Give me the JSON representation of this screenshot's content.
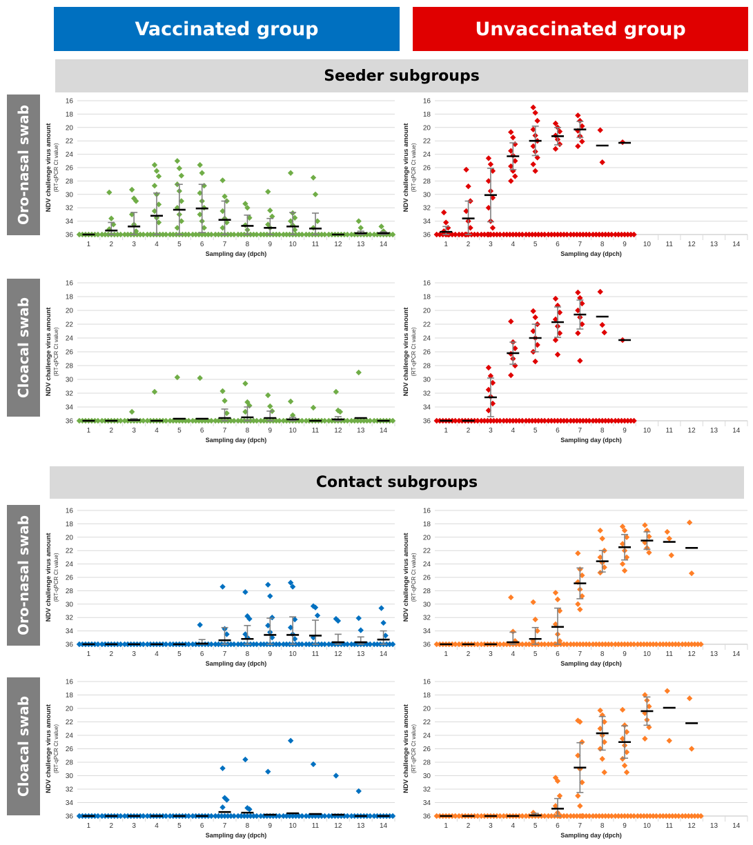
{
  "header": {
    "vaccinated": {
      "label": "Vaccinated group",
      "color": "#0070c0"
    },
    "unvaccinated": {
      "label": "Unvaccinated group",
      "color": "#e00000"
    }
  },
  "sections": {
    "seeder": "Seeder subgroups",
    "contact": "Contact subgroups"
  },
  "row_labels": {
    "oronasal": "Oro-nasal swab",
    "cloacal": "Cloacal swab"
  },
  "axis_text": {
    "ylabel": "NDV challenge virus amount",
    "ylabel_sub": "(RT-qPCR Ct value)",
    "xlabel": "Sampling day (dpch)"
  },
  "colors": {
    "vacc_seeder": "#70ad47",
    "unvacc_seeder": "#e00000",
    "vacc_contact": "#0070c0",
    "unvacc_contact": "#ff7f27",
    "mean": "#000000",
    "errorbar": "#7f7f7f"
  },
  "chart_data": [
    {
      "id": "vacc-seeder-oronasal",
      "type": "scatter",
      "ylabel": "NDV challenge virus amount (RT-qPCR Ct value)",
      "xlabel": "Sampling day (dpch)",
      "y_ticks": [
        16,
        18,
        20,
        22,
        24,
        26,
        28,
        30,
        32,
        34,
        36
      ],
      "ylim": [
        36,
        16
      ],
      "y_reversed": true,
      "x": [
        1,
        2,
        3,
        4,
        5,
        6,
        7,
        8,
        9,
        10,
        11,
        12,
        13,
        14
      ],
      "means": [
        36,
        35.4,
        34.8,
        33.2,
        32.3,
        32.1,
        33.8,
        34.7,
        35.0,
        34.8,
        35.1,
        36,
        35.8,
        35.8
      ],
      "sd": [
        0,
        1.2,
        2.1,
        3.4,
        3.8,
        3.6,
        2.8,
        1.6,
        1.4,
        2.1,
        2.3,
        0,
        0.3,
        0.2
      ],
      "points": [
        [],
        [
          29.7,
          33.6,
          34.5,
          35.2
        ],
        [
          29.3,
          30.6,
          31.0,
          33.0,
          34.5,
          35.5
        ],
        [
          25.6,
          26.5,
          27.3,
          28.7,
          30.0,
          31.5,
          32.5,
          33.5,
          34.2
        ],
        [
          25.0,
          26.1,
          27.2,
          28.5,
          29.5,
          31.0,
          32.0,
          33.0,
          34.0,
          35.0
        ],
        [
          25.6,
          26.8,
          28.7,
          29.8,
          31.0,
          32.0,
          33.0,
          34.0,
          35.0
        ],
        [
          27.9,
          30.3,
          31.0,
          32.5,
          33.6,
          34.2,
          35.0
        ],
        [
          31.4,
          32.0,
          33.5,
          34.6,
          35.3
        ],
        [
          29.6,
          32.4,
          33.3,
          34.5,
          35.0
        ],
        [
          26.8,
          32.8,
          33.5,
          34.0,
          34.6,
          35.3
        ],
        [
          27.5,
          30.0,
          34.0,
          35.0
        ],
        [],
        [
          34.0,
          35.0
        ],
        [
          34.8,
          35.5
        ]
      ]
    },
    {
      "id": "unvacc-seeder-oronasal",
      "type": "scatter",
      "ylabel": "NDV challenge virus amount (RT-qPCR Ct value)",
      "xlabel": "Sampling day (dpch)",
      "y_ticks": [
        16,
        18,
        20,
        22,
        24,
        26,
        28,
        30,
        32,
        34,
        36
      ],
      "ylim": [
        36,
        16
      ],
      "y_reversed": true,
      "x": [
        1,
        2,
        3,
        4,
        5,
        6,
        7,
        8,
        9,
        10,
        11,
        12,
        13,
        14
      ],
      "means": [
        35.6,
        33.6,
        30.1,
        24.3,
        22.0,
        21.3,
        20.3,
        22.7,
        22.3,
        null,
        null,
        null,
        null,
        null
      ],
      "sd": [
        0.8,
        2.6,
        4.0,
        2.0,
        2.2,
        1.3,
        1.2,
        0,
        0,
        null,
        null,
        null,
        null,
        null
      ],
      "points": [
        [
          32.7,
          34.2,
          35.0,
          35.5,
          36,
          36
        ],
        [
          26.3,
          28.8,
          31.0,
          32.5,
          34.0,
          35.0,
          36,
          36
        ],
        [
          24.6,
          25.5,
          26.5,
          28.0,
          29.5,
          30.5,
          32.0,
          34.0,
          35.0,
          36,
          36
        ],
        [
          20.7,
          21.5,
          22.5,
          23.5,
          24.2,
          25.0,
          25.8,
          26.5,
          27.3,
          28.0
        ],
        [
          17.0,
          17.8,
          19.0,
          20.3,
          21.2,
          22.0,
          22.8,
          23.6,
          24.5,
          25.5,
          26.5
        ],
        [
          19.4,
          20.0,
          20.6,
          21.2,
          21.8,
          22.5,
          23.2
        ],
        [
          18.2,
          19.0,
          19.8,
          20.5,
          21.3,
          22.1,
          22.8
        ],
        [
          20.4,
          25.2
        ],
        [
          22.2
        ],
        [],
        [],
        [],
        [],
        []
      ]
    },
    {
      "id": "vacc-seeder-cloacal",
      "type": "scatter",
      "ylabel": "NDV challenge virus amount (RT-qPCR Ct value)",
      "xlabel": "Sampling day (dpch)",
      "y_ticks": [
        16,
        18,
        20,
        22,
        24,
        26,
        28,
        30,
        32,
        34,
        36
      ],
      "ylim": [
        36,
        16
      ],
      "y_reversed": true,
      "x": [
        1,
        2,
        3,
        4,
        5,
        6,
        7,
        8,
        9,
        10,
        11,
        12,
        13,
        14
      ],
      "means": [
        36,
        36,
        35.9,
        36,
        35.7,
        35.7,
        35.6,
        35.5,
        35.6,
        35.8,
        36,
        35.8,
        35.6,
        36
      ],
      "sd": [
        0,
        0,
        0.2,
        0,
        0,
        0,
        1.3,
        1.5,
        1.0,
        0.3,
        0,
        0.4,
        0,
        0
      ],
      "points": [
        [],
        [],
        [
          34.7
        ],
        [
          31.8
        ],
        [
          29.7
        ],
        [
          29.8
        ],
        [
          31.7,
          33.1,
          34.9
        ],
        [
          30.6,
          33.3,
          33.8,
          34.7
        ],
        [
          32.3,
          33.9,
          34.6
        ],
        [
          33.2,
          35.2
        ],
        [
          34.1
        ],
        [
          31.8,
          34.5,
          34.7
        ],
        [
          29.0
        ],
        []
      ]
    },
    {
      "id": "unvacc-seeder-cloacal",
      "type": "scatter",
      "ylabel": "NDV challenge virus amount (RT-qPCR Ct value)",
      "xlabel": "Sampling day (dpch)",
      "y_ticks": [
        16,
        18,
        20,
        22,
        24,
        26,
        28,
        30,
        32,
        34,
        36
      ],
      "ylim": [
        36,
        16
      ],
      "y_reversed": true,
      "x": [
        1,
        2,
        3,
        4,
        5,
        6,
        7,
        8,
        9,
        10,
        11,
        12,
        13,
        14
      ],
      "means": [
        36,
        36,
        32.6,
        26.2,
        24.0,
        21.7,
        20.6,
        20.9,
        24.3,
        null,
        null,
        null,
        null,
        null
      ],
      "sd": [
        0,
        0,
        2.8,
        1.6,
        2.0,
        2.2,
        2.1,
        0,
        0,
        null,
        null,
        null,
        null,
        null
      ],
      "points": [
        [],
        [],
        [
          28.3,
          29.5,
          30.5,
          31.5,
          32.5,
          33.5,
          34.5,
          36
        ],
        [
          21.6,
          24.6,
          25.5,
          26.3,
          27.0,
          28.0,
          29.4
        ],
        [
          20.1,
          21.0,
          22.0,
          23.0,
          24.0,
          25.0,
          26.0,
          27.4
        ],
        [
          18.3,
          19.3,
          20.3,
          21.3,
          22.3,
          23.3,
          24.3,
          26.4
        ],
        [
          17.4,
          18.2,
          19.0,
          20.0,
          21.0,
          22.0,
          23.3,
          27.3
        ],
        [
          17.3,
          22.1,
          23.2
        ],
        [
          24.3
        ],
        [],
        [],
        [],
        [],
        []
      ]
    },
    {
      "id": "vacc-contact-oronasal",
      "type": "scatter",
      "ylabel": "NDV challenge virus amount (RT-qPCR Ct value)",
      "xlabel": "Sampling day (dpch)",
      "y_ticks": [
        16,
        18,
        20,
        22,
        24,
        26,
        28,
        30,
        32,
        34,
        36
      ],
      "ylim": [
        36,
        16
      ],
      "y_reversed": true,
      "x": [
        1,
        2,
        3,
        4,
        5,
        6,
        7,
        8,
        9,
        10,
        11,
        12,
        13,
        14
      ],
      "means": [
        36,
        36,
        36,
        36,
        36,
        35.9,
        35.4,
        35.2,
        34.6,
        34.6,
        34.7,
        35.7,
        35.7,
        35.3
      ],
      "sd": [
        0,
        0,
        0,
        0,
        0,
        0.6,
        1.9,
        2.0,
        2.5,
        2.7,
        2.3,
        1.2,
        0.8,
        1.3
      ],
      "points": [
        [],
        [],
        [],
        [],
        [],
        [
          33.1
        ],
        [
          27.4,
          33.7,
          34.5
        ],
        [
          28.2,
          31.8,
          32.2,
          34.5,
          35.0
        ],
        [
          27.1,
          28.8,
          32.0,
          33.2,
          34.2,
          35.0
        ],
        [
          26.8,
          27.4,
          32.3,
          33.5,
          34.5,
          35.2
        ],
        [
          30.3,
          30.5,
          31.7,
          35.0
        ],
        [
          32.2,
          32.5
        ],
        [
          32.1,
          33.9
        ],
        [
          30.6,
          32.8,
          34.7
        ]
      ]
    },
    {
      "id": "unvacc-contact-oronasal",
      "type": "scatter",
      "ylabel": "NDV challenge virus amount (RT-qPCR Ct value)",
      "xlabel": "Sampling day (dpch)",
      "y_ticks": [
        16,
        18,
        20,
        22,
        24,
        26,
        28,
        30,
        32,
        34,
        36
      ],
      "ylim": [
        36,
        16
      ],
      "y_reversed": true,
      "x": [
        1,
        2,
        3,
        4,
        5,
        6,
        7,
        8,
        9,
        10,
        11,
        12,
        13,
        14
      ],
      "means": [
        36,
        36,
        36,
        35.7,
        35.2,
        33.4,
        26.9,
        23.6,
        21.5,
        20.5,
        20.7,
        21.6,
        null,
        null
      ],
      "sd": [
        0,
        0,
        0,
        1.5,
        1.7,
        2.8,
        2.3,
        1.6,
        1.9,
        1.3,
        0,
        0,
        null,
        null
      ],
      "points": [
        [],
        [],
        [],
        [
          29.0,
          34.1,
          35.5
        ],
        [
          29.7,
          32.3,
          34.0,
          35.5
        ],
        [
          28.3,
          29.3,
          31.0,
          33.0,
          34.5,
          35.5,
          36
        ],
        [
          22.4,
          24.8,
          25.7,
          26.7,
          27.8,
          28.8,
          30.0,
          30.8
        ],
        [
          19.0,
          20.2,
          22.0,
          23.0,
          23.8,
          24.5,
          25.3
        ],
        [
          18.4,
          19.0,
          20.0,
          21.0,
          22.0,
          23.0,
          24.0,
          25.0
        ],
        [
          18.2,
          19.0,
          19.9,
          20.8,
          21.6,
          22.3
        ],
        [
          19.2,
          20.2,
          22.7
        ],
        [
          17.8,
          25.4
        ],
        [],
        []
      ]
    },
    {
      "id": "vacc-contact-cloacal",
      "type": "scatter",
      "ylabel": "NDV challenge virus amount (RT-qPCR Ct value)",
      "xlabel": "Sampling day (dpch)",
      "y_ticks": [
        16,
        18,
        20,
        22,
        24,
        26,
        28,
        30,
        32,
        34,
        36
      ],
      "ylim": [
        36,
        16
      ],
      "y_reversed": true,
      "x": [
        1,
        2,
        3,
        4,
        5,
        6,
        7,
        8,
        9,
        10,
        11,
        12,
        13,
        14
      ],
      "means": [
        36,
        36,
        36,
        36,
        36,
        36,
        35.4,
        35.5,
        35.8,
        35.6,
        35.7,
        35.8,
        36,
        36
      ],
      "sd": [
        0,
        0,
        0,
        0,
        0,
        0,
        0,
        0,
        0,
        0,
        0,
        0,
        0,
        0
      ],
      "points": [
        [],
        [],
        [],
        [],
        [],
        [],
        [
          28.9,
          33.3,
          33.6,
          34.7
        ],
        [
          27.6,
          34.8,
          35.0
        ],
        [
          29.4
        ],
        [
          24.8
        ],
        [
          28.3
        ],
        [
          30.0
        ],
        [
          32.3
        ],
        []
      ]
    },
    {
      "id": "unvacc-contact-cloacal",
      "type": "scatter",
      "ylabel": "NDV challenge virus amount (RT-qPCR Ct value)",
      "xlabel": "Sampling day (dpch)",
      "y_ticks": [
        16,
        18,
        20,
        22,
        24,
        26,
        28,
        30,
        32,
        34,
        36
      ],
      "ylim": [
        36,
        16
      ],
      "y_reversed": true,
      "x": [
        1,
        2,
        3,
        4,
        5,
        6,
        7,
        8,
        9,
        10,
        11,
        12,
        13,
        14
      ],
      "means": [
        36,
        36,
        36,
        36,
        35.9,
        34.9,
        28.8,
        23.7,
        25.0,
        20.4,
        19.9,
        22.2,
        null,
        null
      ],
      "sd": [
        0,
        0,
        0,
        0,
        0.3,
        1.5,
        3.7,
        2.5,
        2.4,
        2.1,
        0,
        0,
        null,
        null
      ],
      "points": [
        [],
        [],
        [],
        [],
        [
          35.5
        ],
        [
          30.3,
          30.8,
          33.0,
          34.5,
          35.5,
          36
        ],
        [
          21.8,
          22.0,
          25.0,
          27.0,
          29.0,
          31.0,
          33.0,
          34.5,
          36
        ],
        [
          20.3,
          21.0,
          22.0,
          23.0,
          24.0,
          25.0,
          26.0,
          27.5,
          29.5
        ],
        [
          20.2,
          22.5,
          23.5,
          24.5,
          25.5,
          26.5,
          27.5,
          28.5,
          29.5
        ],
        [
          18.0,
          18.8,
          19.7,
          20.7,
          21.7,
          22.8,
          24.5
        ],
        [
          17.4,
          24.8
        ],
        [
          18.5,
          26.0
        ],
        [],
        []
      ]
    }
  ]
}
